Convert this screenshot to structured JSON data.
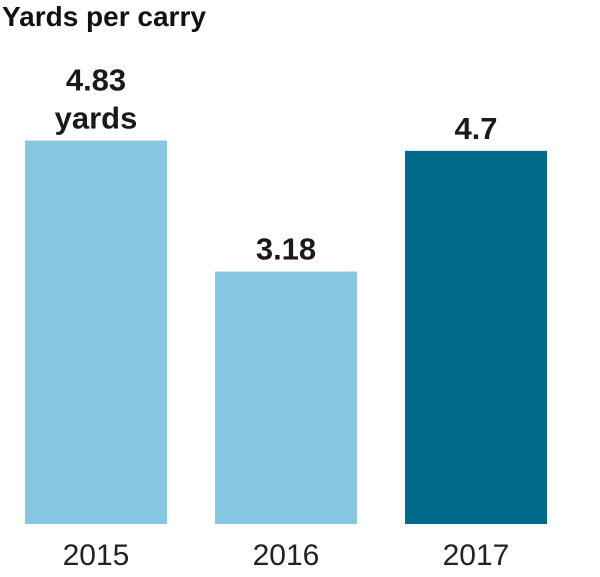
{
  "chart_data": {
    "type": "bar",
    "title": "Yards per carry",
    "categories": [
      "2015",
      "2016",
      "2017"
    ],
    "values": [
      4.83,
      3.18,
      4.7
    ],
    "data_labels": [
      [
        "4.83",
        "yards"
      ],
      [
        "3.18"
      ],
      [
        "4.7"
      ]
    ],
    "ylim": [
      0,
      6.6
    ],
    "grid": false,
    "legend": "none",
    "colors": [
      "#86c6e0",
      "#86c6e0",
      "#006a8c"
    ],
    "xlabel": "",
    "ylabel": ""
  }
}
